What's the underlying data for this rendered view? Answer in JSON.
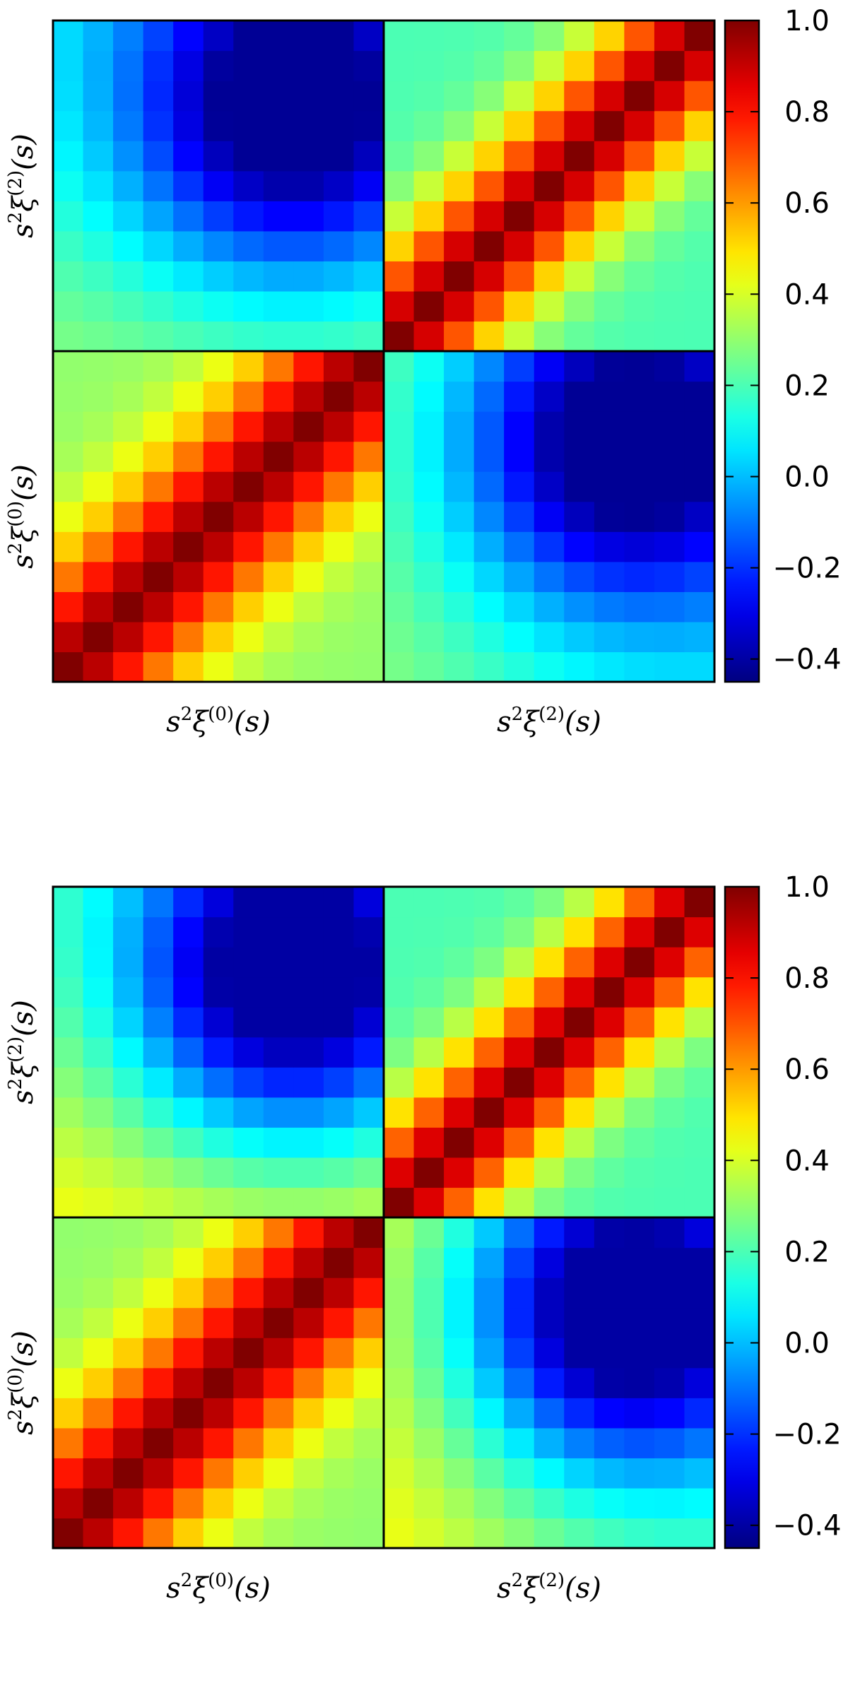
{
  "chart_data": [
    {
      "type": "heatmap",
      "block_labels": [
        "s²ξ⁽⁰⁾(s)",
        "s²ξ⁽²⁾(s)"
      ],
      "xlabel_left": {
        "base": "s",
        "sup1": "2",
        "mid": "ξ",
        "sup2": "(0)",
        "tail": "(s)"
      },
      "xlabel_right": {
        "base": "s",
        "sup1": "2",
        "mid": "ξ",
        "sup2": "(2)",
        "tail": "(s)"
      },
      "ylabel_top": {
        "base": "s",
        "sup1": "2",
        "mid": "ξ",
        "sup2": "(2)",
        "tail": "(s)"
      },
      "ylabel_bottom": {
        "base": "s",
        "sup1": "2",
        "mid": "ξ",
        "sup2": "(0)",
        "tail": "(s)"
      },
      "colorbar": {
        "colormap": "jet",
        "range": [
          -0.45,
          1.0
        ],
        "ticks": [
          -0.4,
          -0.2,
          0.0,
          0.2,
          0.4,
          0.6,
          0.8,
          1.0
        ],
        "tick_labels": [
          "−0.4",
          "−0.2",
          "0.0",
          "0.2",
          "0.4",
          "0.6",
          "0.8",
          "1.0"
        ]
      },
      "grid_size": 22,
      "block_size": 11,
      "model": {
        "auto0_rho": 0.9,
        "auto0_floor": 0.3,
        "auto2_rho": 0.87,
        "auto2_floor": 0.2,
        "cross_min": -0.42,
        "cross_max": 0.28
      },
      "ylim": [
        0,
        22
      ],
      "xlim": [
        0,
        22
      ],
      "legend": "none",
      "grid": false
    },
    {
      "type": "heatmap",
      "block_labels": [
        "s²ξ⁽⁰⁾(s)",
        "s²ξ⁽²⁾(s)"
      ],
      "xlabel_left": {
        "base": "s",
        "sup1": "2",
        "mid": "ξ",
        "sup2": "(0)",
        "tail": "(s)"
      },
      "xlabel_right": {
        "base": "s",
        "sup1": "2",
        "mid": "ξ",
        "sup2": "(2)",
        "tail": "(s)"
      },
      "ylabel_top": {
        "base": "s",
        "sup1": "2",
        "mid": "ξ",
        "sup2": "(2)",
        "tail": "(s)"
      },
      "ylabel_bottom": {
        "base": "s",
        "sup1": "2",
        "mid": "ξ",
        "sup2": "(0)",
        "tail": "(s)"
      },
      "colorbar": {
        "colormap": "jet",
        "range": [
          -0.45,
          1.0
        ],
        "ticks": [
          -0.4,
          -0.2,
          0.0,
          0.2,
          0.4,
          0.6,
          0.8,
          1.0
        ],
        "tick_labels": [
          "−0.4",
          "−0.2",
          "0.0",
          "0.2",
          "0.4",
          "0.6",
          "0.8",
          "1.0"
        ]
      },
      "grid_size": 22,
      "block_size": 11,
      "model": {
        "auto0_rho": 0.9,
        "auto0_floor": 0.3,
        "auto2_rho": 0.86,
        "auto2_floor": 0.2,
        "cross_min": -0.4,
        "cross_max": 0.45
      },
      "ylim": [
        0,
        22
      ],
      "xlim": [
        0,
        22
      ],
      "legend": "none",
      "grid": false
    }
  ]
}
